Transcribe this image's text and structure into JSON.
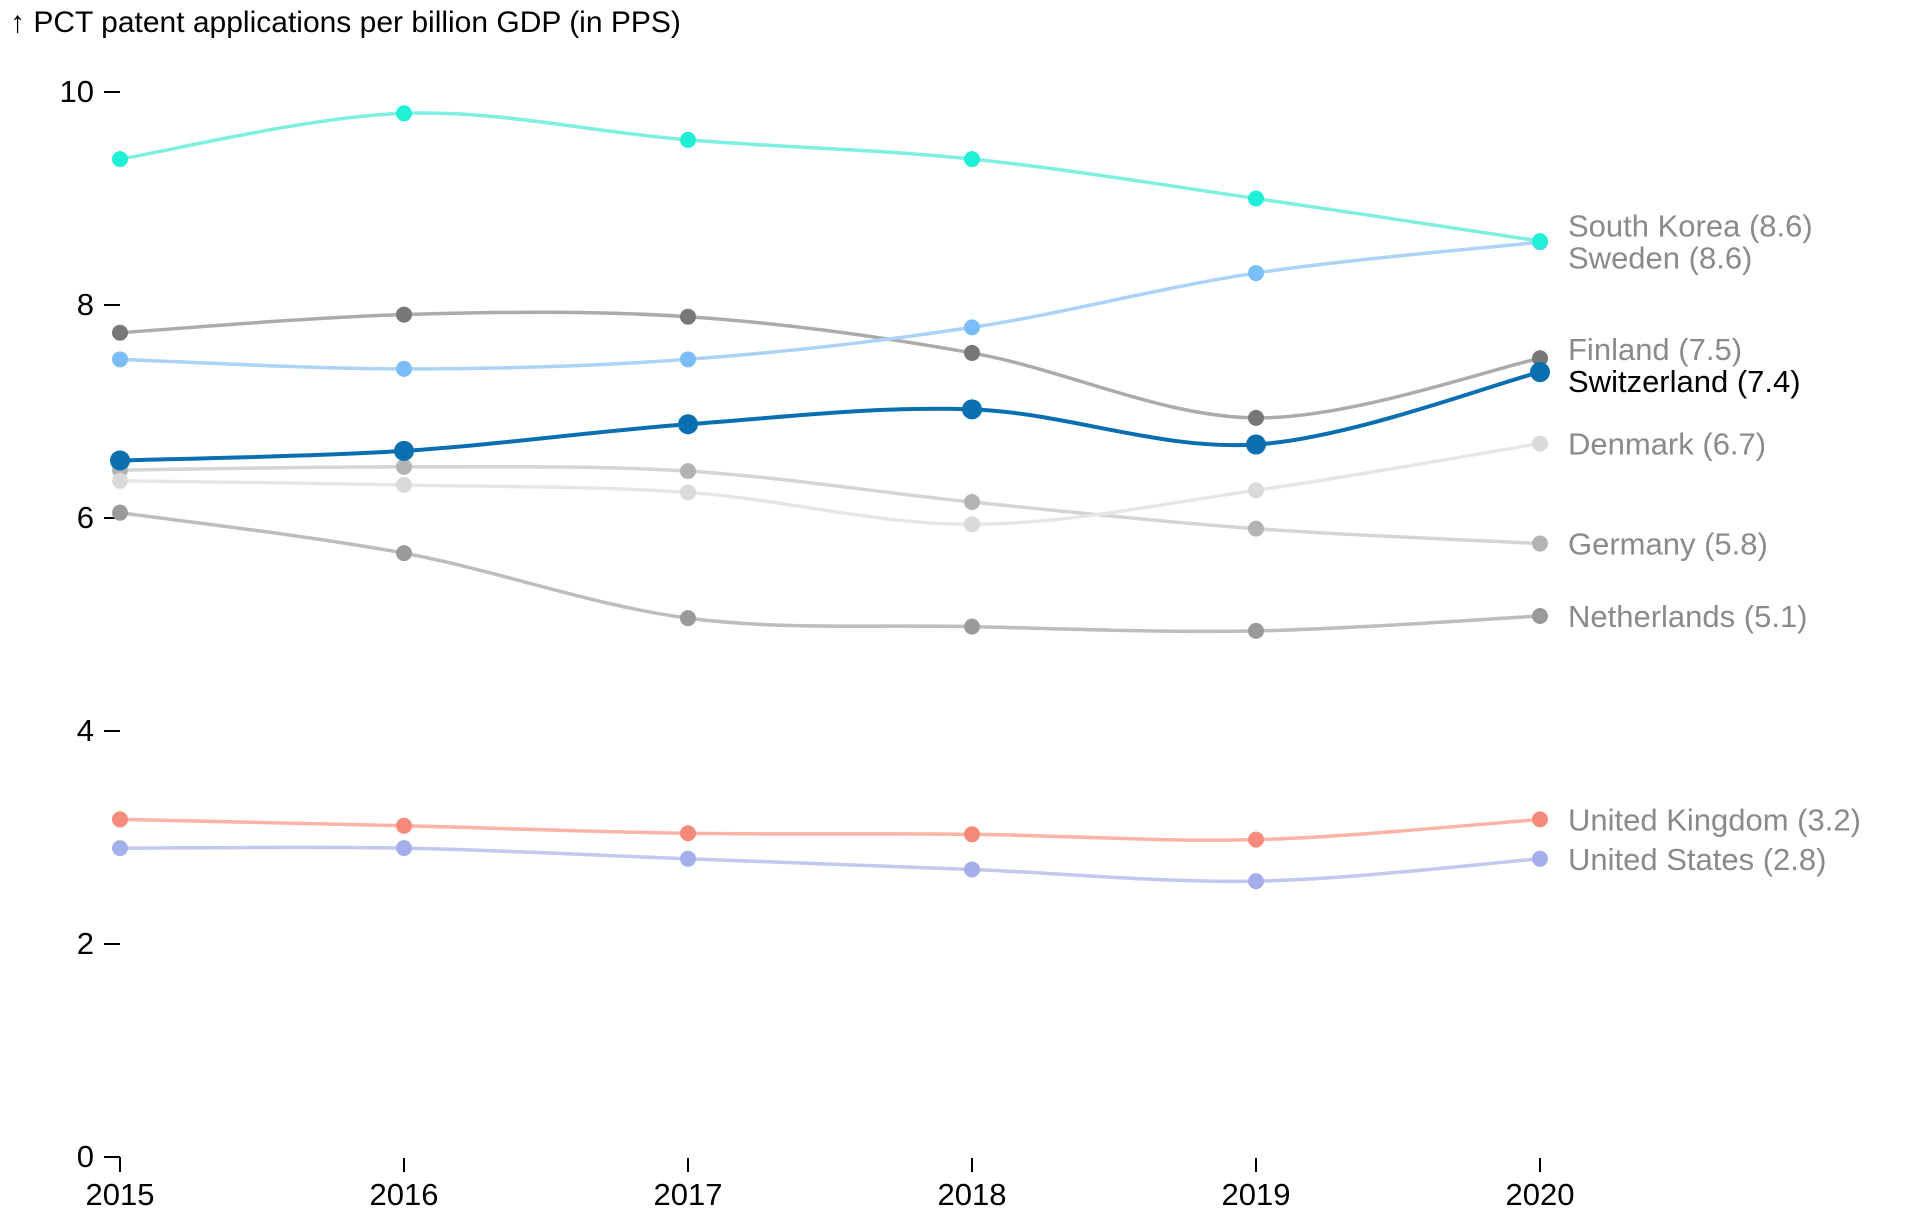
{
  "chart_data": {
    "type": "line",
    "y_axis_title": "↑ PCT patent applications per billion GDP (in PPS)",
    "x": [
      2015,
      2016,
      2017,
      2018,
      2019,
      2020
    ],
    "x_tick_labels": [
      "2015",
      "2016",
      "2017",
      "2018",
      "2019",
      "2020"
    ],
    "y_ticks": [
      0,
      2,
      4,
      6,
      8,
      10
    ],
    "y_tick_labels": [
      "0",
      "2",
      "4",
      "6",
      "8",
      "10"
    ],
    "ylim": [
      0,
      10
    ],
    "grid": false,
    "legend": "direct labels at line ends (right)",
    "series": [
      {
        "name": "Netherlands",
        "end_label": "Netherlands (5.1)",
        "values": [
          6.05,
          5.67,
          5.06,
          4.98,
          4.94,
          5.08
        ],
        "line_color": "#bdbdbd",
        "marker_color": "#9a9a9a",
        "label_color": "#8a8a8a",
        "highlight": false
      },
      {
        "name": "Germany",
        "end_label": "Germany (5.8)",
        "values": [
          6.45,
          6.48,
          6.44,
          6.15,
          5.9,
          5.76
        ],
        "line_color": "#d4d4d4",
        "marker_color": "#b3b3b3",
        "label_color": "#8a8a8a",
        "highlight": false
      },
      {
        "name": "Denmark",
        "end_label": "Denmark (6.7)",
        "values": [
          6.35,
          6.31,
          6.24,
          5.94,
          6.26,
          6.7
        ],
        "line_color": "#e6e6e6",
        "marker_color": "#dadada",
        "label_color": "#8a8a8a",
        "highlight": false
      },
      {
        "name": "Finland",
        "end_label": "Finland (7.5)",
        "values": [
          7.74,
          7.91,
          7.89,
          7.55,
          6.94,
          7.5
        ],
        "line_color": "#ababab",
        "marker_color": "#777777",
        "label_color": "#8a8a8a",
        "highlight": false
      },
      {
        "name": "Sweden",
        "end_label": "Sweden (8.6)",
        "values": [
          7.49,
          7.4,
          7.49,
          7.79,
          8.3,
          8.59
        ],
        "line_color": "#acd3f7",
        "marker_color": "#7bbdf8",
        "label_color": "#8a8a8a",
        "highlight": false
      },
      {
        "name": "South Korea",
        "end_label": "South Korea (8.6)",
        "values": [
          9.37,
          9.8,
          9.55,
          9.37,
          9.0,
          8.6
        ],
        "line_color": "#7df0e0",
        "marker_color": "#1ff0d6",
        "label_color": "#8a8a8a",
        "highlight": false
      },
      {
        "name": "United Kingdom",
        "end_label": "United Kingdom (3.2)",
        "values": [
          3.17,
          3.11,
          3.04,
          3.03,
          2.98,
          3.17
        ],
        "line_color": "#fab3a6",
        "marker_color": "#f7897a",
        "label_color": "#8a8a8a",
        "highlight": false
      },
      {
        "name": "United States",
        "end_label": "United States (2.8)",
        "values": [
          2.9,
          2.9,
          2.8,
          2.7,
          2.59,
          2.8
        ],
        "line_color": "#c2c8ef",
        "marker_color": "#a4aeea",
        "label_color": "#8a8a8a",
        "highlight": false
      },
      {
        "name": "Switzerland",
        "end_label": "Switzerland (7.4)",
        "values": [
          6.54,
          6.63,
          6.88,
          7.02,
          6.69,
          7.37
        ],
        "line_color": "#0a6fb0",
        "marker_color": "#0a6fb0",
        "label_color": "#000000",
        "highlight": true
      }
    ]
  }
}
